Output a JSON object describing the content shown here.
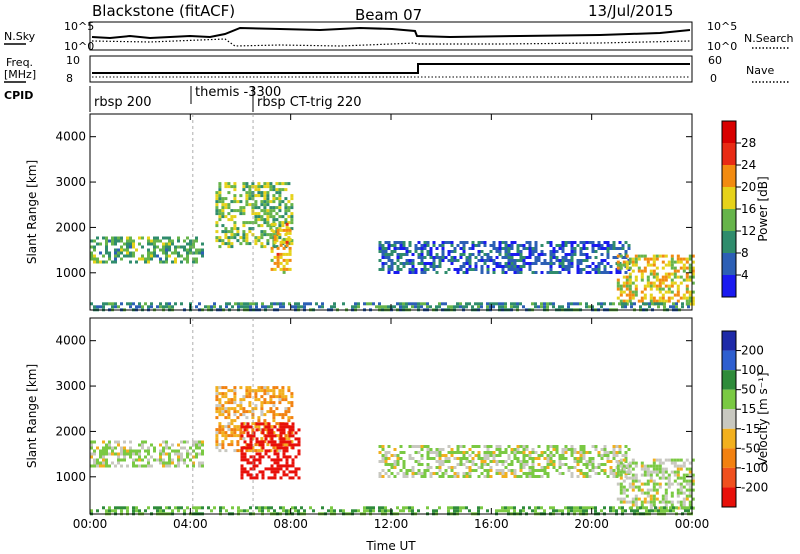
{
  "header": {
    "station": "Blackstone (fitACF)",
    "beam": "Beam 07",
    "date": "13/Jul/2015"
  },
  "labels": {
    "nsky": "N.Sky",
    "nsearch": "N.Search",
    "freq_line1": "Freq.",
    "freq_line2": "[MHz]",
    "nave": "Nave",
    "cpid": "CPID",
    "noise_ticks_left": [
      "10^5",
      "10^0"
    ],
    "noise_ticks_right": [
      "10^5",
      "10^0"
    ],
    "freq_ticks_left": [
      "10",
      "8"
    ],
    "nave_ticks_right": [
      "60",
      "0"
    ]
  },
  "cpid_segments": [
    {
      "name": "rbsp 200",
      "start_hr": 0
    },
    {
      "name": "themis -3300",
      "start_hr": 4.1
    },
    {
      "name": "rbsp CT-trig 220",
      "start_hr": 6.5
    }
  ],
  "time_axis": {
    "title": "Time UT",
    "ticks": [
      "00:00",
      "04:00",
      "08:00",
      "12:00",
      "16:00",
      "20:00",
      "00:00"
    ]
  },
  "range_axis": {
    "title": "Slant Range [km]",
    "ticks": [
      "1000",
      "2000",
      "3000",
      "4000"
    ]
  },
  "power_scale": {
    "title": "Power [dB]",
    "ticks": [
      "4",
      "8",
      "12",
      "16",
      "20",
      "24",
      "28"
    ],
    "colors": [
      "#1a1af0",
      "#2c5fb5",
      "#2f8c6c",
      "#66b44a",
      "#e6d21a",
      "#f28b10",
      "#e82b14",
      "#d80000"
    ]
  },
  "velocity_scale": {
    "title": "Velocity [m s⁻¹]",
    "ticks": [
      "200",
      "100",
      "50",
      "15",
      "-15",
      "-50",
      "-100",
      "-200"
    ],
    "colors": [
      "#1e2aa8",
      "#2e5fd0",
      "#2e8b3a",
      "#7ac943",
      "#c8c8c0",
      "#f2b01e",
      "#f28110",
      "#f0501e",
      "#e8100a"
    ]
  },
  "chart_data": [
    {
      "type": "heatmap",
      "title": "",
      "xlabel": "Time UT",
      "ylabel": "Slant Range [km]",
      "colorbar_label": "Power [dB]",
      "xlim": [
        0,
        24
      ],
      "ylim": [
        180,
        4500
      ],
      "colorbar_range": [
        0,
        32
      ],
      "echo_regions": [
        {
          "t_start": 0.0,
          "t_end": 4.5,
          "range_start": 1250,
          "range_end": 1800,
          "power_db": 12
        },
        {
          "t_start": 5.0,
          "t_end": 8.0,
          "range_start": 1600,
          "range_end": 3000,
          "power_db": 14
        },
        {
          "t_start": 7.2,
          "t_end": 8.0,
          "range_start": 1000,
          "range_end": 2100,
          "power_db": 20
        },
        {
          "t_start": 11.5,
          "t_end": 21.5,
          "range_start": 1000,
          "range_end": 1700,
          "power_db": 6
        },
        {
          "t_start": 21.0,
          "t_end": 24.0,
          "range_start": 300,
          "range_end": 1400,
          "power_db": 18
        },
        {
          "t_start": 0.0,
          "t_end": 24.0,
          "range_start": 180,
          "range_end": 350,
          "power_db": 10
        }
      ]
    },
    {
      "type": "heatmap",
      "title": "",
      "xlabel": "Time UT",
      "ylabel": "Slant Range [km]",
      "colorbar_label": "Velocity [m s⁻¹]",
      "xlim": [
        0,
        24
      ],
      "ylim": [
        180,
        4500
      ],
      "colorbar_range": [
        -250,
        250
      ],
      "echo_regions": [
        {
          "t_start": 0.0,
          "t_end": 4.5,
          "range_start": 1250,
          "range_end": 1800,
          "velocity": 0
        },
        {
          "t_start": 5.0,
          "t_end": 8.0,
          "range_start": 1600,
          "range_end": 3000,
          "velocity": -30
        },
        {
          "t_start": 6.0,
          "t_end": 8.3,
          "range_start": 1000,
          "range_end": 2200,
          "velocity": -200
        },
        {
          "t_start": 11.5,
          "t_end": 21.5,
          "range_start": 1000,
          "range_end": 1700,
          "velocity": 0
        },
        {
          "t_start": 21.0,
          "t_end": 24.0,
          "range_start": 300,
          "range_end": 1400,
          "velocity": 0
        },
        {
          "t_start": 0.0,
          "t_end": 24.0,
          "range_start": 180,
          "range_end": 350,
          "velocity": 30
        }
      ]
    }
  ]
}
